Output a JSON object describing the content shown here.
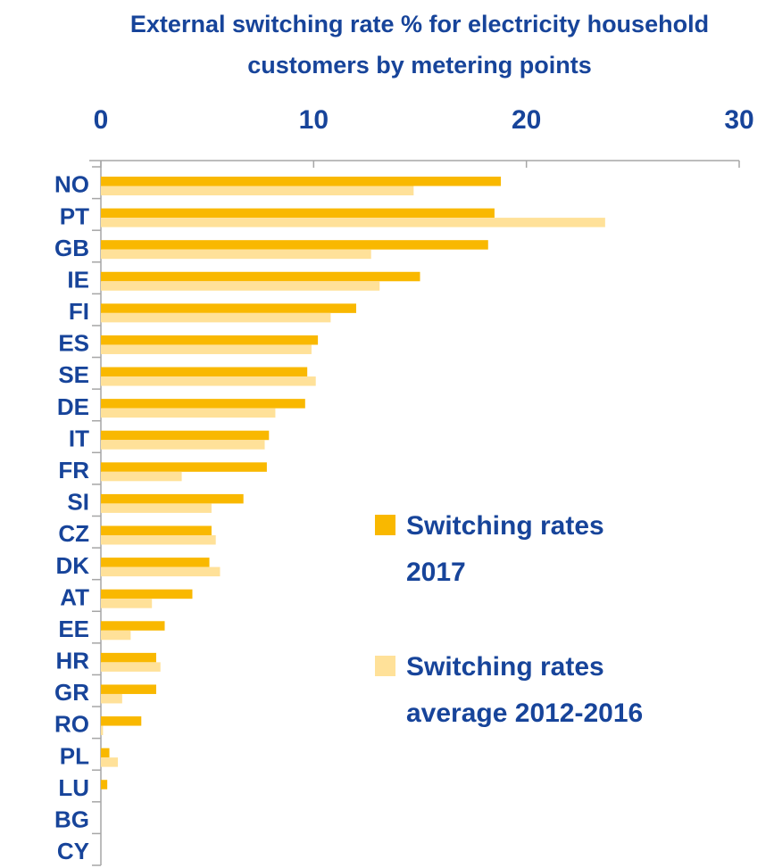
{
  "chart_data": {
    "type": "barh",
    "title": "External switching rate % for electricity household customers by metering points",
    "categories": [
      "NO",
      "PT",
      "GB",
      "IE",
      "FI",
      "ES",
      "SE",
      "DE",
      "IT",
      "FR",
      "SI",
      "CZ",
      "DK",
      "AT",
      "EE",
      "HR",
      "GR",
      "RO",
      "PL",
      "LU",
      "BG",
      "CY"
    ],
    "series": [
      {
        "name": "Switching rates 2017",
        "color": "#f9b800",
        "values": [
          18.8,
          18.5,
          18.2,
          15.0,
          12.0,
          10.2,
          9.7,
          9.6,
          7.9,
          7.8,
          6.7,
          5.2,
          5.1,
          4.3,
          3.0,
          2.6,
          2.6,
          1.9,
          0.4,
          0.3,
          0,
          0
        ]
      },
      {
        "name": "Switching rates average 2012-2016",
        "color": "#ffe199",
        "values": [
          14.7,
          23.7,
          12.7,
          13.1,
          10.8,
          9.9,
          10.1,
          8.2,
          7.7,
          3.8,
          5.2,
          5.4,
          5.6,
          2.4,
          1.4,
          2.8,
          1.0,
          0.1,
          0.8,
          0,
          0,
          0
        ]
      }
    ],
    "xlim": [
      0,
      30
    ],
    "xticks": [
      0,
      10,
      20,
      30
    ]
  }
}
